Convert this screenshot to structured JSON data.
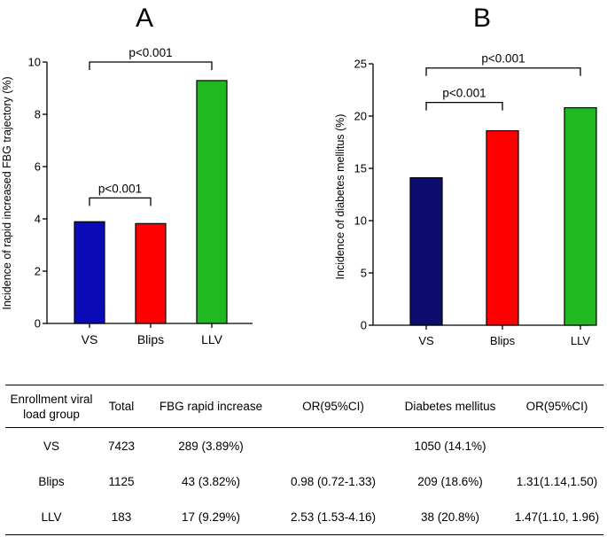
{
  "chart_data": [
    {
      "type": "bar",
      "panel": "A",
      "title": "",
      "xlabel": "",
      "ylabel": "Incidence of rapid increased FBG trajectory (%)",
      "ylim": [
        0,
        10
      ],
      "yticks": [
        0,
        2,
        4,
        6,
        8,
        10
      ],
      "categories": [
        "VS",
        "Blips",
        "LLV"
      ],
      "values": [
        3.89,
        3.82,
        9.29
      ],
      "colors": [
        "#0a0ab8",
        "#ff0000",
        "#22b822"
      ],
      "significance": [
        {
          "from": 0,
          "to": 1,
          "label": "p<0.001",
          "y": 4.8
        },
        {
          "from": 0,
          "to": 2,
          "label": "p<0.001",
          "y": 10.0
        }
      ]
    },
    {
      "type": "bar",
      "panel": "B",
      "title": "",
      "xlabel": "",
      "ylabel": "Incidence of diabetes mellitus (%)",
      "ylim": [
        0,
        25
      ],
      "yticks": [
        0,
        5,
        10,
        15,
        20,
        25
      ],
      "categories": [
        "VS",
        "Blips",
        "LLV"
      ],
      "values": [
        14.1,
        18.6,
        20.8
      ],
      "colors": [
        "#0d0d6e",
        "#ff0000",
        "#22b822"
      ],
      "significance": [
        {
          "from": 0,
          "to": 1,
          "label": "p<0.001",
          "y": 21.3
        },
        {
          "from": 0,
          "to": 2,
          "label": "p<0.001",
          "y": 24.6
        }
      ]
    }
  ],
  "table": {
    "headers": {
      "group_line1": "Enrollment viral",
      "group_line2": "load group",
      "total": "Total",
      "fbg": "FBG rapid increase",
      "or1": "OR(95%CI)",
      "dm": "Diabetes mellitus",
      "or2": "OR(95%CI)"
    },
    "rows": [
      {
        "group": "VS",
        "total": "7423",
        "fbg": "289 (3.89%)",
        "or1": "",
        "dm": "1050 (14.1%)",
        "or2": ""
      },
      {
        "group": "Blips",
        "total": "1125",
        "fbg": "43 (3.82%)",
        "or1": "0.98 (0.72-1.33)",
        "dm": "209 (18.6%)",
        "or2": "1.31(1.14,1.50)"
      },
      {
        "group": "LLV",
        "total": "183",
        "fbg": "17 (9.29%)",
        "or1": "2.53 (1.53-4.16)",
        "dm": "38 (20.8%)",
        "or2": "1.47(1.10, 1.96)"
      }
    ]
  }
}
